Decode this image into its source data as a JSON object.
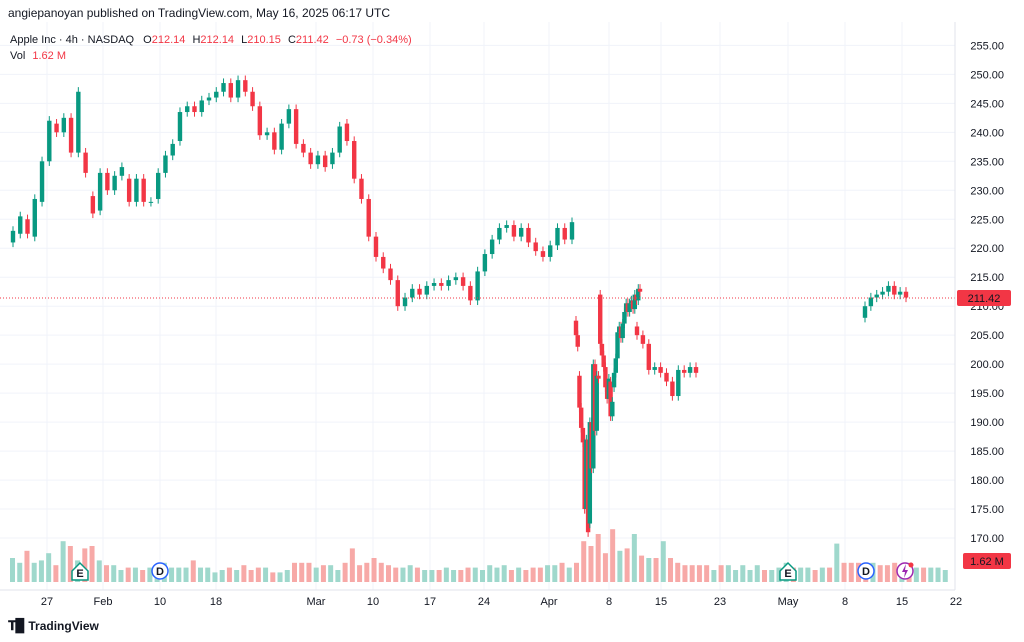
{
  "header": {
    "published": "angiepanoyan published on TradingView.com, May 16, 2025 06:17 UTC"
  },
  "legend": {
    "symbol": "Apple Inc · 4h · NASDAQ",
    "o_label": "O",
    "o_value": "212.14",
    "h_label": "H",
    "h_value": "212.14",
    "l_label": "L",
    "l_value": "210.15",
    "c_label": "C",
    "c_value": "211.42",
    "change": "−0.73 (−0.34%)",
    "vol_label": "Vol",
    "vol_value": "1.62 M"
  },
  "footer": {
    "brand": "TradingView"
  },
  "colors": {
    "up": "#089981",
    "down": "#f23645",
    "vol_up": "#9fd8cc",
    "vol_down": "#f7a9a7",
    "last_price_bg": "#f23645"
  },
  "chart_data": {
    "type": "candlestick",
    "symbol": "AAPL",
    "timeframe": "4h",
    "ylim": [
      165,
      258
    ],
    "y_ticks": [
      "170.00",
      "175.00",
      "180.00",
      "185.00",
      "190.00",
      "195.00",
      "200.00",
      "205.00",
      "210.00",
      "215.00",
      "220.00",
      "225.00",
      "230.00",
      "235.00",
      "240.00",
      "245.00",
      "250.00",
      "255.00"
    ],
    "x_ticks": [
      "27",
      "Feb",
      "10",
      "18",
      "Mar",
      "10",
      "17",
      "24",
      "Apr",
      "8",
      "15",
      "23",
      "May",
      "8",
      "15",
      "22"
    ],
    "last_price": 211.42,
    "last_price_label": "211.42",
    "volume_label": "1.62 M",
    "event_markers": [
      {
        "type": "E",
        "tick": "Feb"
      },
      {
        "type": "D",
        "tick": "10"
      },
      {
        "type": "E",
        "tick": "May"
      },
      {
        "type": "D",
        "tick": "8"
      },
      {
        "type": "S",
        "tick": "15"
      }
    ],
    "segments": [
      [
        [
          221.0,
          223.0
        ],
        [
          222.5,
          225.5
        ],
        [
          225.0,
          222.5
        ],
        [
          222.0,
          228.5
        ],
        [
          228.0,
          235.0
        ],
        [
          235.0,
          242.0
        ],
        [
          241.5,
          240.0
        ],
        [
          240.0,
          242.5
        ],
        [
          242.5,
          236.5
        ],
        [
          236.5,
          247.0
        ],
        [
          236.5,
          233.0
        ],
        [
          229.0,
          226.0
        ],
        [
          226.5,
          233.0
        ],
        [
          233.0,
          230.0
        ],
        [
          230.0,
          232.5
        ],
        [
          232.5,
          234.0
        ],
        [
          232.0,
          228.0
        ],
        [
          228.0,
          232.0
        ],
        [
          232.0,
          228.0
        ],
        [
          228.0,
          228.0
        ],
        [
          228.5,
          233.0
        ],
        [
          233.0,
          236.0
        ],
        [
          236.0,
          238.0
        ],
        [
          238.5,
          243.5
        ],
        [
          243.5,
          244.5
        ],
        [
          244.5,
          243.5
        ],
        [
          243.5,
          245.5
        ],
        [
          245.5,
          246.0
        ],
        [
          246.0,
          247.0
        ],
        [
          247.0,
          248.5
        ],
        [
          248.5,
          246.0
        ],
        [
          246.0,
          249.0
        ],
        [
          249.0,
          247.0
        ],
        [
          247.0,
          244.5
        ],
        [
          244.5,
          239.5
        ],
        [
          239.5,
          240.0
        ],
        [
          240.0,
          237.0
        ],
        [
          237.0,
          241.5
        ],
        [
          241.5,
          244.0
        ],
        [
          244.0,
          238.0
        ],
        [
          238.0,
          236.5
        ],
        [
          236.5,
          234.5
        ],
        [
          234.5,
          236.0
        ],
        [
          236.0,
          234.0
        ],
        [
          234.5,
          236.5
        ],
        [
          236.5,
          241.0
        ],
        [
          241.5,
          238.5
        ],
        [
          238.5,
          232.0
        ],
        [
          232.0,
          228.5
        ],
        [
          228.5,
          222.0
        ],
        [
          222.0,
          218.5
        ],
        [
          218.5,
          216.5
        ],
        [
          216.5,
          214.5
        ],
        [
          214.5,
          210.0
        ],
        [
          210.0,
          211.5
        ],
        [
          211.5,
          213.0
        ],
        [
          213.0,
          212.0
        ],
        [
          212.0,
          213.5
        ],
        [
          213.5,
          214.0
        ],
        [
          214.0,
          213.5
        ],
        [
          213.5,
          214.5
        ],
        [
          214.5,
          215.0
        ],
        [
          215.0,
          213.5
        ],
        [
          213.5,
          211.0
        ],
        [
          211.0,
          216.0
        ],
        [
          216.0,
          219.0
        ],
        [
          219.0,
          221.5
        ],
        [
          221.5,
          223.5
        ],
        [
          223.5,
          224.0
        ],
        [
          224.0,
          222.0
        ],
        [
          222.0,
          223.5
        ],
        [
          223.5,
          221.0
        ],
        [
          221.0,
          219.5
        ],
        [
          219.5,
          218.5
        ],
        [
          218.5,
          220.5
        ],
        [
          220.5,
          223.5
        ],
        [
          223.5,
          221.5
        ],
        [
          221.5,
          224.5
        ]
      ],
      [
        [
          207.5,
          205.0
        ],
        [
          205.0,
          203.0
        ],
        [
          198.0,
          192.5
        ],
        [
          192.5,
          189.0
        ],
        [
          189.0,
          186.5
        ],
        [
          186.5,
          175.0
        ],
        [
          175.0,
          187.0
        ],
        [
          187.0,
          171.0
        ],
        [
          172.5,
          190.0
        ],
        [
          190.0,
          182.0
        ],
        [
          182.0,
          200.0
        ],
        [
          200.0,
          188.5
        ],
        [
          188.5,
          198.0
        ],
        [
          198.0,
          197.5
        ],
        [
          212.0,
          203.5
        ],
        [
          203.5,
          201.5
        ],
        [
          201.5,
          199.5
        ],
        [
          199.5,
          196.0
        ],
        [
          196.5,
          194.0
        ],
        [
          194.0,
          197.5
        ],
        [
          197.0,
          191.0
        ],
        [
          191.0,
          193.5
        ],
        [
          196.0,
          198.5
        ],
        [
          198.5,
          201.0
        ],
        [
          201.0,
          205.5
        ],
        [
          205.5,
          206.5
        ],
        [
          206.5,
          204.5
        ],
        [
          204.5,
          207.0
        ],
        [
          207.0,
          209.0
        ],
        [
          209.0,
          210.5
        ],
        [
          210.5,
          209.0
        ],
        [
          209.0,
          210.5
        ],
        [
          210.5,
          211.0
        ],
        [
          211.0,
          209.5
        ],
        [
          209.5,
          212.0
        ],
        [
          212.0,
          211.0
        ],
        [
          211.0,
          213.0
        ],
        [
          213.0,
          212.5
        ]
      ],
      [
        [
          206.5,
          205.0
        ],
        [
          205.0,
          203.5
        ],
        [
          203.5,
          199.0
        ],
        [
          199.0,
          199.5
        ],
        [
          199.5,
          198.5
        ],
        [
          198.5,
          197.0
        ],
        [
          197.0,
          194.5
        ],
        [
          194.5,
          199.0
        ],
        [
          199.0,
          198.5
        ],
        [
          198.5,
          199.5
        ],
        [
          199.5,
          198.5
        ]
      ],
      [
        [
          208.0,
          210.0
        ],
        [
          210.0,
          211.5
        ],
        [
          211.5,
          212.0
        ],
        [
          212.0,
          212.5
        ],
        [
          212.5,
          213.5
        ],
        [
          213.5,
          212.0
        ],
        [
          212.0,
          212.5
        ],
        [
          212.5,
          211.5
        ]
      ]
    ],
    "volume": [
      10,
      8,
      13,
      8,
      9,
      12,
      7,
      17,
      15,
      9,
      14,
      15,
      9,
      7,
      7,
      5,
      6,
      6,
      5,
      6,
      6,
      8,
      6,
      6,
      6,
      9,
      6,
      6,
      4,
      5,
      6,
      5,
      7,
      5,
      6,
      6,
      4,
      4,
      5,
      8,
      8,
      8,
      6,
      7,
      7,
      5,
      8,
      14,
      7,
      8,
      10,
      8,
      7,
      6,
      6,
      7,
      6,
      5,
      5,
      5,
      6,
      5,
      5,
      6,
      6,
      5,
      7,
      6,
      7,
      5,
      6,
      5,
      6,
      6,
      7,
      7,
      8,
      6,
      8,
      17,
      15,
      20,
      12,
      22,
      13,
      14,
      20,
      11,
      10,
      10,
      17,
      10,
      8,
      7,
      7,
      7,
      7,
      5,
      7,
      7,
      5,
      7,
      5,
      7,
      5,
      5,
      6,
      8,
      6,
      6,
      6,
      5,
      6,
      6,
      16,
      8,
      8,
      8,
      7,
      8,
      7,
      7,
      8,
      6,
      8,
      6,
      6,
      6,
      6,
      5
    ]
  }
}
